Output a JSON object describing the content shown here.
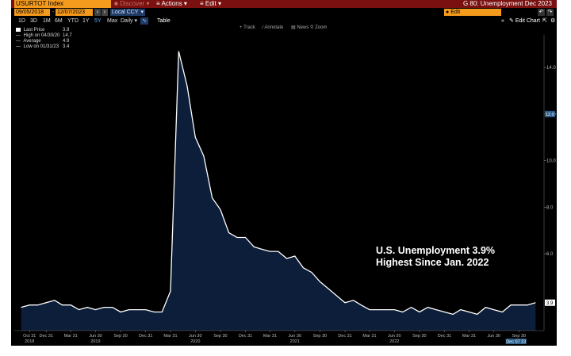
{
  "header": {
    "ticker": "USURTOT Index",
    "menus": [
      "Discover",
      "Actions",
      "Edit"
    ],
    "title": "G 80: Unemployment Dec 2023"
  },
  "controls": {
    "start_date": "09/05/2018",
    "end_date": "12/07/2023",
    "currency": "Local CCY",
    "periods": [
      "1D",
      "3D",
      "1M",
      "6M",
      "YTD",
      "1Y",
      "5Y",
      "Max"
    ],
    "active_period": "5Y",
    "frequency": "Daily",
    "table_label": "Table",
    "search_placeholder": "Edit",
    "edit_chart_label": "Edit Chart",
    "tools": [
      "Track",
      "Annotate",
      "News",
      "Zoom"
    ]
  },
  "legend": [
    {
      "label": "Last Price",
      "value": "3.9",
      "color": "#ffffff"
    },
    {
      "label": "High on 04/30/20",
      "value": "14.7",
      "color": "#000000"
    },
    {
      "label": "Average",
      "value": "4.9",
      "color": "#000000"
    },
    {
      "label": "Low on 01/31/23",
      "value": "3.4",
      "color": "#000000"
    }
  ],
  "annotation": {
    "line1": "U.S. Unemployment 3.9%",
    "line2": "Highest Since Jan. 2022"
  },
  "colors": {
    "header_bg": "#7a1010",
    "field_orange": "#f49a1d",
    "area_fill": "#0d1e3a",
    "line": "#ffffff"
  },
  "chart_data": {
    "type": "area",
    "series": [
      {
        "name": "Last Price",
        "x": [
          "2018-09-30",
          "2018-10-31",
          "2018-11-30",
          "2018-12-31",
          "2019-01-31",
          "2019-02-28",
          "2019-03-31",
          "2019-04-30",
          "2019-05-31",
          "2019-06-30",
          "2019-07-31",
          "2019-08-31",
          "2019-09-30",
          "2019-10-31",
          "2019-11-30",
          "2019-12-31",
          "2020-01-31",
          "2020-02-29",
          "2020-03-31",
          "2020-04-30",
          "2020-05-31",
          "2020-06-30",
          "2020-07-31",
          "2020-08-31",
          "2020-09-30",
          "2020-10-31",
          "2020-11-30",
          "2020-12-31",
          "2021-01-31",
          "2021-02-28",
          "2021-03-31",
          "2021-04-30",
          "2021-05-31",
          "2021-06-30",
          "2021-07-31",
          "2021-08-31",
          "2021-09-30",
          "2021-10-31",
          "2021-11-30",
          "2021-12-31",
          "2022-01-31",
          "2022-02-28",
          "2022-03-31",
          "2022-04-30",
          "2022-05-31",
          "2022-06-30",
          "2022-07-31",
          "2022-08-31",
          "2022-09-30",
          "2022-10-31",
          "2022-11-30",
          "2022-12-31",
          "2023-01-31",
          "2023-02-28",
          "2023-03-31",
          "2023-04-30",
          "2023-05-31",
          "2023-06-30",
          "2023-07-31",
          "2023-08-31",
          "2023-09-30",
          "2023-10-31",
          "2023-11-30"
        ],
        "values": [
          3.7,
          3.8,
          3.8,
          3.9,
          4.0,
          3.8,
          3.8,
          3.6,
          3.7,
          3.6,
          3.7,
          3.7,
          3.5,
          3.6,
          3.6,
          3.6,
          3.5,
          3.5,
          4.4,
          14.7,
          13.2,
          11.0,
          10.2,
          8.4,
          7.9,
          6.9,
          6.7,
          6.7,
          6.3,
          6.2,
          6.1,
          6.1,
          5.8,
          5.9,
          5.4,
          5.2,
          4.8,
          4.5,
          4.2,
          3.9,
          4.0,
          3.8,
          3.6,
          3.6,
          3.6,
          3.6,
          3.5,
          3.7,
          3.5,
          3.7,
          3.6,
          3.5,
          3.4,
          3.6,
          3.5,
          3.4,
          3.7,
          3.6,
          3.5,
          3.8,
          3.8,
          3.8,
          3.9
        ]
      }
    ],
    "y_ticks": [
      6.0,
      8.0,
      10.0,
      12.0,
      14.0
    ],
    "y_current_label": "3.9",
    "y_marker_label": "12.0",
    "x_ticks": [
      {
        "label": "Oct 31",
        "year": "2018",
        "date": "2018-10-31"
      },
      {
        "label": "Dec 31",
        "year": "",
        "date": "2018-12-31"
      },
      {
        "label": "Mar 31",
        "year": "",
        "date": "2019-03-31"
      },
      {
        "label": "Jun 30",
        "year": "2019",
        "date": "2019-06-30"
      },
      {
        "label": "Sep 30",
        "year": "",
        "date": "2019-09-30"
      },
      {
        "label": "Dec 31",
        "year": "",
        "date": "2019-12-31"
      },
      {
        "label": "Mar 31",
        "year": "",
        "date": "2020-03-31"
      },
      {
        "label": "Jun 30",
        "year": "2020",
        "date": "2020-06-30"
      },
      {
        "label": "Sep 30",
        "year": "",
        "date": "2020-09-30"
      },
      {
        "label": "Dec 31",
        "year": "",
        "date": "2020-12-31"
      },
      {
        "label": "Mar 31",
        "year": "",
        "date": "2021-03-31"
      },
      {
        "label": "Jun 30",
        "year": "2021",
        "date": "2021-06-30"
      },
      {
        "label": "Sep 30",
        "year": "",
        "date": "2021-09-30"
      },
      {
        "label": "Dec 31",
        "year": "",
        "date": "2021-12-31"
      },
      {
        "label": "Mar 31",
        "year": "",
        "date": "2022-03-31"
      },
      {
        "label": "Jun 30",
        "year": "2022",
        "date": "2022-06-30"
      },
      {
        "label": "Sep 30",
        "year": "",
        "date": "2022-09-30"
      },
      {
        "label": "Dec 31",
        "year": "",
        "date": "2022-12-31"
      },
      {
        "label": "Mar 31",
        "year": "",
        "date": "2023-03-31"
      },
      {
        "label": "Jun 30",
        "year": "",
        "date": "2023-06-30"
      },
      {
        "label": "Sep 30",
        "year": "",
        "date": "2023-09-30"
      }
    ],
    "x_end_label": "Dec 07 23",
    "ylim": [
      2.7,
      15.4
    ],
    "xlim": [
      "2018-09-05",
      "2023-12-31"
    ],
    "grid": false
  }
}
